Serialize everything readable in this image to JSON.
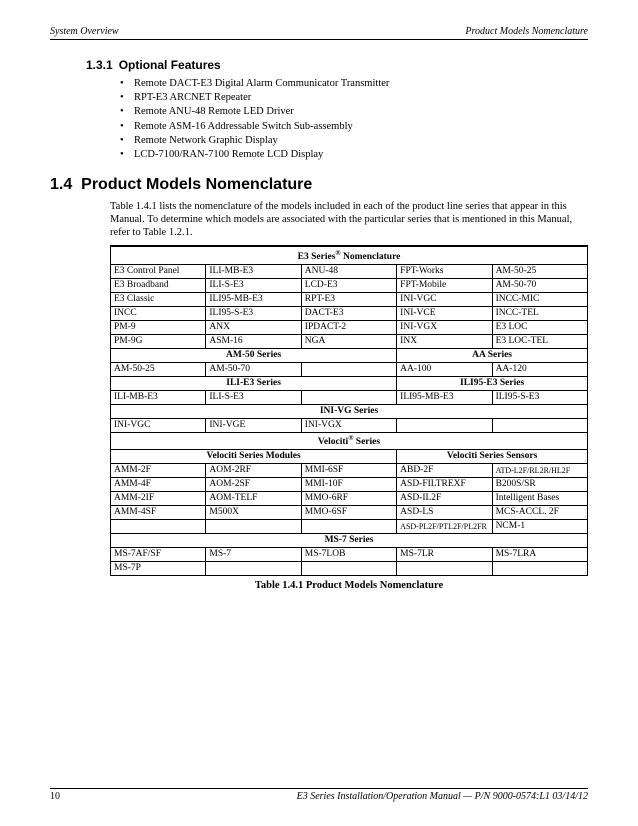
{
  "header": {
    "left": "System Overview",
    "right": "Product Models Nomenclature"
  },
  "sec131": {
    "num": "1.3.1",
    "title": "Optional Features"
  },
  "bullets": [
    "Remote DACT-E3 Digital Alarm Communicator Transmitter",
    "RPT-E3 ARCNET Repeater",
    "Remote ANU-48 Remote LED Driver",
    "Remote ASM-16 Addressable Switch Sub-assembly",
    "Remote Network Graphic Display",
    "LCD-7100/RAN-7100 Remote LCD Display"
  ],
  "sec14": {
    "num": "1.4",
    "title": "Product Models Nomenclature"
  },
  "para": "Table 1.4.1 lists the nomenclature of the models included in each of the product line series that appear in this Manual. To determine which models are associated with the particular series that is mentioned in this Manual, refer to Table 1.2.1.",
  "tbl": {
    "hdr_e3": "E3 Series",
    "reg": "®",
    "hdr_e3_suffix": " Nomenclature",
    "e3": [
      [
        "E3 Control Panel",
        "ILI-MB-E3",
        "ANU-48",
        "FPT-Works",
        "AM-50-25"
      ],
      [
        "E3 Broadband",
        "ILI-S-E3",
        "LCD-E3",
        "FPT-Mobile",
        "AM-50-70"
      ],
      [
        "E3 Classic",
        "ILI95-MB-E3",
        "RPT-E3",
        "INI-VGC",
        "INCC-MIC"
      ],
      [
        "INCC",
        "ILI95-S-E3",
        "DACT-E3",
        "INI-VCE",
        "INCC-TEL"
      ],
      [
        "PM-9",
        "ANX",
        "IPDACT-2",
        "INI-VGX",
        "E3 LOC"
      ],
      [
        "PM-9G",
        "ASM-16",
        "NGA",
        "INX",
        "E3 LOC-TEL"
      ]
    ],
    "hdr_am50": "AM-50 Series",
    "hdr_aa": "AA Series",
    "am50": [
      "AM-50-25",
      "AM-50-70",
      ""
    ],
    "aa": [
      "AA-100",
      "AA-120"
    ],
    "hdr_ilie3": "ILI-E3 Series",
    "hdr_ili95": "ILI95-E3 Series",
    "ili": [
      "ILI-MB-E3",
      "ILI-S-E3",
      "",
      "ILI95-MB-E3",
      "ILI95-S-E3"
    ],
    "hdr_inivg": "INI-VG Series",
    "inivg": [
      "INI-VGC",
      "INI-VGE",
      "INI-VGX",
      "",
      ""
    ],
    "hdr_vel": "Velociti",
    "hdr_vel_suffix": " Series",
    "hdr_velmod": "Velociti Series Modules",
    "hdr_velsen": "Velociti Series Sensors",
    "vel": [
      [
        "AMM-2F",
        "AOM-2RF",
        "MMI-6SF",
        "ABD-2F",
        "ATD-L2F/RL2R/HL2F"
      ],
      [
        "AMM-4F",
        "AOM-2SF",
        "MMI-10F",
        "ASD-FILTREXF",
        "B200S/SR"
      ],
      [
        "AMM-2IF",
        "AOM-TELF",
        "MMO-6RF",
        "ASD-IL2F",
        "Intelligent Bases"
      ],
      [
        "AMM-4SF",
        "M500X",
        "MMO-6SF",
        "ASD-LS",
        "MCS-ACCL. 2F"
      ],
      [
        "",
        "",
        "",
        "ASD-PL2F/PTL2F/PL2FR",
        "NCM-1"
      ]
    ],
    "hdr_ms7": "MS-7 Series",
    "ms7": [
      [
        "MS-7AF/SF",
        "MS-7",
        "MS-7LOB",
        "MS-7LR",
        "MS-7LRA"
      ],
      [
        "MS-7P",
        "",
        "",
        "",
        ""
      ]
    ]
  },
  "caption": "Table 1.4.1 Product Models Nomenclature",
  "footer": {
    "page": "10",
    "right": "E3 Series Installation/Operation Manual — P/N 9000-0574:L1  03/14/12"
  }
}
